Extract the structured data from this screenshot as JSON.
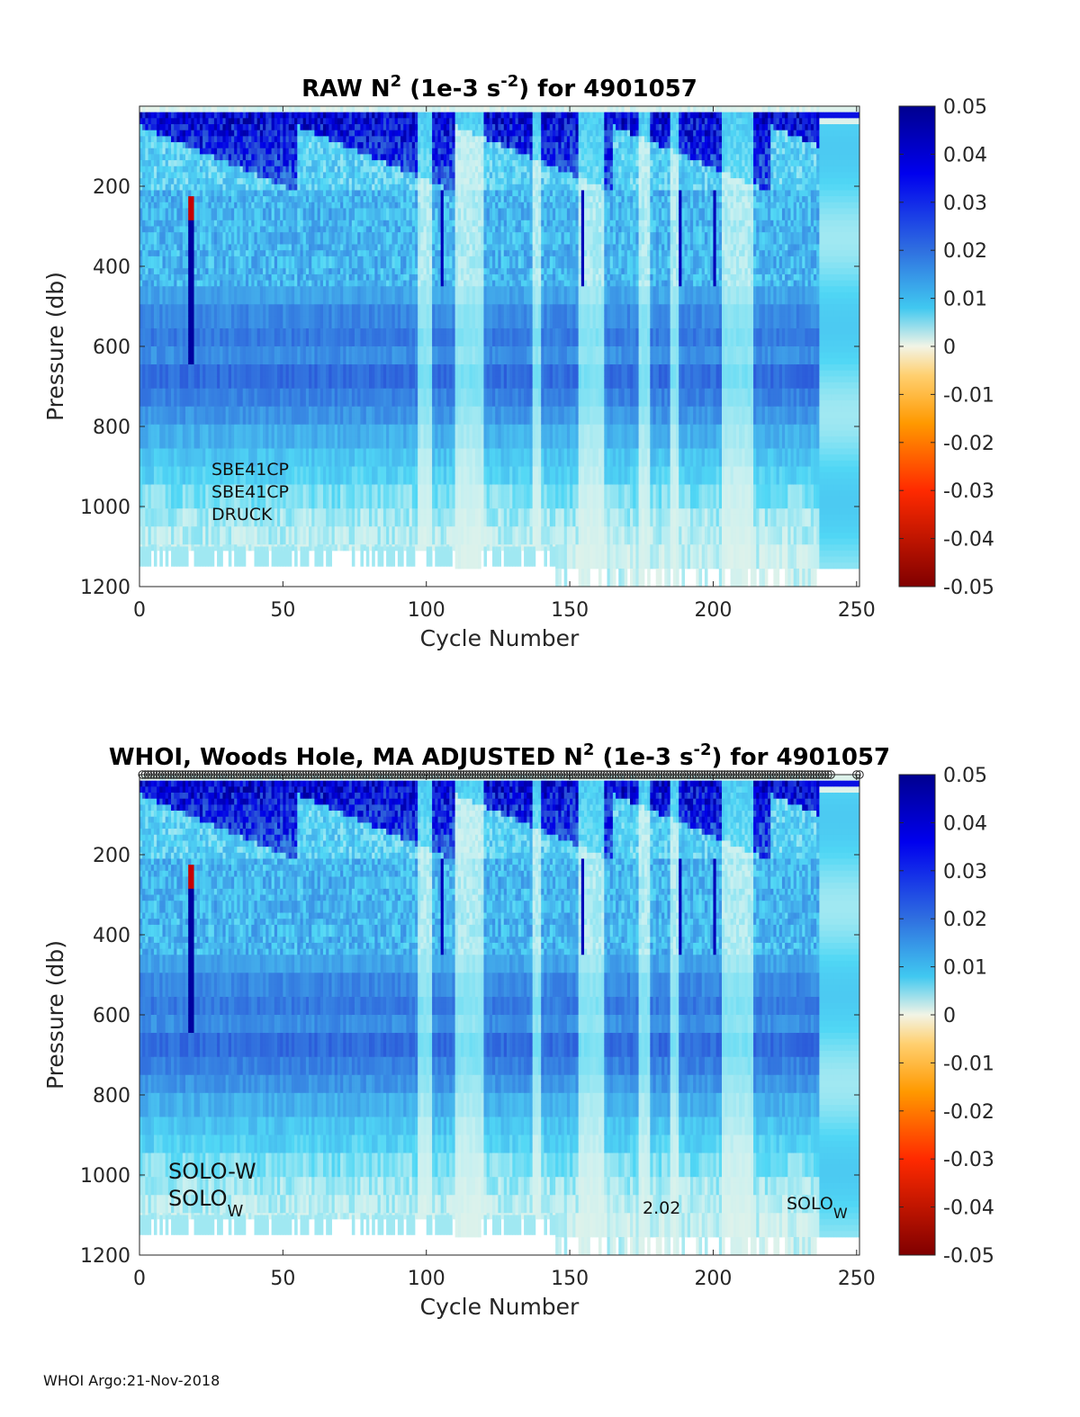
{
  "chart_data": [
    {
      "type": "heatmap",
      "title_parts": [
        "RAW N",
        "2",
        " (1e-3 s",
        "-2",
        ") for 4901057"
      ],
      "xlabel": "Cycle Number",
      "ylabel": "Pressure (db)",
      "xlim": [
        0,
        251
      ],
      "ylim": [
        0,
        1200
      ],
      "y_reversed": true,
      "xticks": [
        0,
        50,
        100,
        150,
        200,
        250
      ],
      "yticks": [
        200,
        400,
        600,
        800,
        1000,
        1200
      ],
      "annotations": [
        "SBE41CP",
        "SBE41CP",
        "DRUCK"
      ],
      "colorbar": {
        "range": [
          -0.05,
          0.05
        ],
        "tick_values": [
          0.05,
          0.04,
          0.03,
          0.02,
          0.01,
          0,
          -0.01,
          -0.02,
          -0.03,
          -0.04,
          -0.05
        ],
        "tick_labels": [
          "0.05",
          "0.04",
          "0.03",
          "0.02",
          "0.01",
          "0",
          "-0.01",
          "-0.02",
          "-0.03",
          "-0.04",
          "-0.05"
        ]
      }
    },
    {
      "type": "heatmap",
      "title_parts": [
        "WHOI, Woods Hole, MA  ADJUSTED N",
        "2",
        " (1e-3 s",
        "-2",
        ") for 4901057"
      ],
      "xlabel": "Cycle Number",
      "ylabel": "Pressure (db)",
      "xlim": [
        0,
        251
      ],
      "ylim": [
        0,
        1200
      ],
      "y_reversed": true,
      "xticks": [
        0,
        50,
        100,
        150,
        200,
        250
      ],
      "yticks": [
        200,
        400,
        600,
        800,
        1000,
        1200
      ],
      "annotations": {
        "left_1": "SOLO-W",
        "left_2_base": "SOLO",
        "left_2_sub": "W",
        "mid": "2.02",
        "right_base": "SOLO",
        "right_sub": "W"
      },
      "colorbar": {
        "range": [
          -0.05,
          0.05
        ],
        "tick_values": [
          0.05,
          0.04,
          0.03,
          0.02,
          0.01,
          0,
          -0.01,
          -0.02,
          -0.03,
          -0.04,
          -0.05
        ],
        "tick_labels": [
          "0.05",
          "0.04",
          "0.03",
          "0.02",
          "0.01",
          "0",
          "-0.01",
          "-0.02",
          "-0.03",
          "-0.04",
          "-0.05"
        ]
      }
    }
  ],
  "footer": "WHOI Argo:21-Nov-2018"
}
